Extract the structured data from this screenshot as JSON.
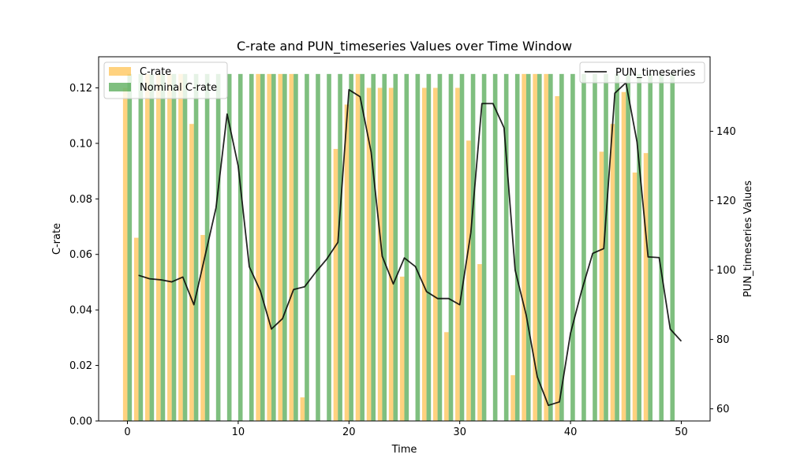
{
  "chart_data": {
    "type": "bar",
    "title": "C-rate and PUN_timeseries Values over Time Window",
    "xlabel": "Time",
    "ylabel": "C-rate",
    "y2label": "PUN_timeseries Values",
    "xlim": [
      -2.6,
      52.6
    ],
    "ylim": [
      0,
      0.1312
    ],
    "y2lim": [
      56.5,
      161.5
    ],
    "xticks": [
      "0",
      "10",
      "20",
      "30",
      "40",
      "50"
    ],
    "yticks": [
      "0.00",
      "0.02",
      "0.04",
      "0.06",
      "0.08",
      "0.10",
      "0.12"
    ],
    "y2ticks": [
      "60",
      "80",
      "100",
      "120",
      "140"
    ],
    "legend_left_position": "top-left",
    "legend_right_position": "top-right",
    "grid": false,
    "series": [
      {
        "name": "C-rate",
        "kind": "bar",
        "color": "#ffa500",
        "opacity": 0.5,
        "x": [
          0,
          1,
          2,
          3,
          4,
          5,
          6,
          7,
          8,
          9,
          10,
          11,
          12,
          13,
          14,
          15,
          16,
          17,
          18,
          19,
          20,
          21,
          22,
          23,
          24,
          25,
          26,
          27,
          28,
          29,
          30,
          31,
          32,
          33,
          34,
          35,
          36,
          37,
          38,
          39,
          40,
          41,
          42,
          43,
          44,
          45,
          46,
          47,
          48,
          49
        ],
        "values": [
          0.12,
          0.066,
          0.125,
          0.125,
          0.125,
          0.125,
          0.107,
          0.067,
          0,
          0,
          0,
          0,
          0.125,
          0.125,
          0.125,
          0.125,
          0.0085,
          0,
          0,
          0.098,
          0.114,
          0.125,
          0.12,
          0.12,
          0.12,
          0.052,
          0,
          0.12,
          0.12,
          0.032,
          0.12,
          0.101,
          0.0565,
          0,
          0,
          0.0165,
          0.125,
          0.125,
          0.125,
          0.117,
          0,
          0,
          0,
          0.097,
          0.107,
          0.1185,
          0.0895,
          0.0965,
          0,
          0
        ]
      },
      {
        "name": "Nominal C-rate",
        "kind": "bar",
        "color": "#008000",
        "opacity": 0.5,
        "x": [
          0,
          1,
          2,
          3,
          4,
          5,
          6,
          7,
          8,
          9,
          10,
          11,
          12,
          13,
          14,
          15,
          16,
          17,
          18,
          19,
          20,
          21,
          22,
          23,
          24,
          25,
          26,
          27,
          28,
          29,
          30,
          31,
          32,
          33,
          34,
          35,
          36,
          37,
          38,
          39,
          40,
          41,
          42,
          43,
          44,
          45,
          46,
          47,
          48,
          49
        ],
        "values": [
          0.125,
          0.125,
          0.125,
          0.125,
          0.125,
          0.125,
          0.125,
          0.125,
          0.125,
          0.125,
          0.125,
          0.125,
          0.125,
          0.125,
          0.125,
          0.125,
          0.125,
          0.125,
          0.125,
          0.125,
          0.125,
          0.125,
          0.125,
          0.125,
          0.125,
          0.125,
          0.125,
          0.125,
          0.125,
          0.125,
          0.125,
          0.125,
          0.125,
          0.125,
          0.125,
          0.125,
          0.125,
          0.125,
          0.125,
          0.125,
          0.125,
          0.125,
          0.125,
          0.125,
          0.125,
          0.125,
          0.125,
          0.125,
          0.125,
          0.125
        ]
      },
      {
        "name": "PUN_timeseries",
        "kind": "line",
        "axis": "right",
        "color": "#000000",
        "opacity": 0.85,
        "x": [
          1,
          2,
          3,
          4,
          5,
          6,
          7,
          8,
          9,
          10,
          11,
          12,
          13,
          14,
          15,
          16,
          17,
          18,
          19,
          20,
          21,
          22,
          23,
          24,
          25,
          26,
          27,
          28,
          29,
          30,
          31,
          32,
          33,
          34,
          35,
          36,
          37,
          38,
          39,
          40,
          41,
          42,
          43,
          44,
          45,
          46,
          47,
          48,
          49,
          50
        ],
        "values": [
          98.5,
          97.5,
          97.2,
          96.6,
          98,
          90,
          104,
          118,
          145,
          130,
          101,
          94,
          83,
          86,
          94.4,
          95.2,
          99.4,
          103.2,
          108,
          152,
          150,
          134,
          104,
          96,
          103.5,
          101,
          93.8,
          91.8,
          91.8,
          90,
          110.8,
          148,
          148,
          141,
          100,
          87,
          69.2,
          61,
          62,
          81.8,
          94,
          104.8,
          106.2,
          151,
          154,
          137,
          103.8,
          103.6,
          83,
          79.5
        ]
      }
    ]
  }
}
